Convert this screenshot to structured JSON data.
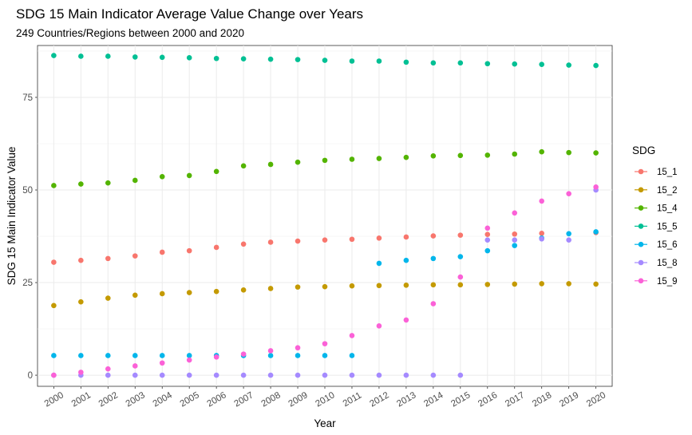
{
  "chart_data": {
    "type": "scatter",
    "title": "SDG 15 Main Indicator Average Value Change over Years",
    "subtitle": "249 Countries/Regions between 2000 and 2020",
    "xlabel": "Year",
    "ylabel": "SDG 15 Main Indicator Value",
    "x": [
      2000,
      2001,
      2002,
      2003,
      2004,
      2005,
      2006,
      2007,
      2008,
      2009,
      2010,
      2011,
      2012,
      2013,
      2014,
      2015,
      2016,
      2017,
      2018,
      2019,
      2020
    ],
    "x_tick_labels": [
      "2000",
      "2001",
      "2002",
      "2003",
      "2004",
      "2005",
      "2006",
      "2007",
      "2008",
      "2009",
      "2010",
      "2011",
      "2012",
      "2013",
      "2014",
      "2015",
      "2016",
      "2017",
      "2018",
      "2019",
      "2020"
    ],
    "y_ticks": [
      0,
      25,
      50,
      75
    ],
    "y_tick_labels": [
      "0",
      "25",
      "50",
      "75"
    ],
    "ylim": [
      -3,
      89
    ],
    "grid": true,
    "legend_title": "SDG",
    "legend_position": "right",
    "series": [
      {
        "name": "15_1",
        "color": "#F8766D",
        "values": [
          30.5,
          31.0,
          31.5,
          32.2,
          33.2,
          33.6,
          34.5,
          35.4,
          35.9,
          36.2,
          36.5,
          36.7,
          37.0,
          37.3,
          37.6,
          37.8,
          38.0,
          38.1,
          38.3,
          null,
          38.5
        ]
      },
      {
        "name": "15_2",
        "color": "#C49A00",
        "values": [
          18.8,
          19.8,
          20.8,
          21.6,
          22.0,
          22.3,
          22.6,
          23.0,
          23.4,
          23.8,
          23.9,
          24.1,
          24.2,
          24.3,
          24.4,
          24.4,
          24.5,
          24.6,
          24.7,
          24.7,
          24.6
        ]
      },
      {
        "name": "15_4",
        "color": "#53B400",
        "values": [
          51.2,
          51.6,
          51.9,
          52.6,
          53.6,
          53.9,
          55.0,
          56.5,
          56.9,
          57.5,
          58.0,
          58.3,
          58.5,
          58.8,
          59.2,
          59.3,
          59.4,
          59.7,
          60.3,
          60.1,
          60.0
        ]
      },
      {
        "name": "15_5",
        "color": "#00C094",
        "values": [
          86.3,
          86.1,
          86.1,
          85.9,
          85.8,
          85.7,
          85.5,
          85.4,
          85.3,
          85.2,
          85.0,
          84.8,
          84.8,
          84.5,
          84.3,
          84.3,
          84.1,
          84.0,
          83.9,
          83.7,
          83.6
        ]
      },
      {
        "name": "15_6",
        "color": "#00B6EB",
        "values": [
          5.3,
          5.3,
          5.3,
          5.3,
          5.3,
          5.3,
          5.3,
          5.3,
          5.3,
          5.3,
          5.3,
          5.3,
          30.2,
          31.0,
          31.5,
          32.0,
          33.6,
          35.0,
          37.0,
          38.2,
          38.7
        ]
      },
      {
        "name": "15_8",
        "color": "#A58AFF",
        "values": [
          0.0,
          0.0,
          0.0,
          0.0,
          0.0,
          0.0,
          0.0,
          0.0,
          0.0,
          0.0,
          0.0,
          0.0,
          0.0,
          0.0,
          0.0,
          0.0,
          36.5,
          36.5,
          36.8,
          36.5,
          50.0
        ]
      },
      {
        "name": "15_9",
        "color": "#FB61D7",
        "values": [
          0.0,
          0.8,
          1.7,
          2.5,
          3.3,
          4.1,
          4.9,
          5.7,
          6.6,
          7.4,
          8.5,
          10.7,
          13.3,
          14.9,
          19.3,
          26.5,
          39.7,
          43.8,
          47.0,
          49.0,
          50.8
        ]
      }
    ]
  }
}
